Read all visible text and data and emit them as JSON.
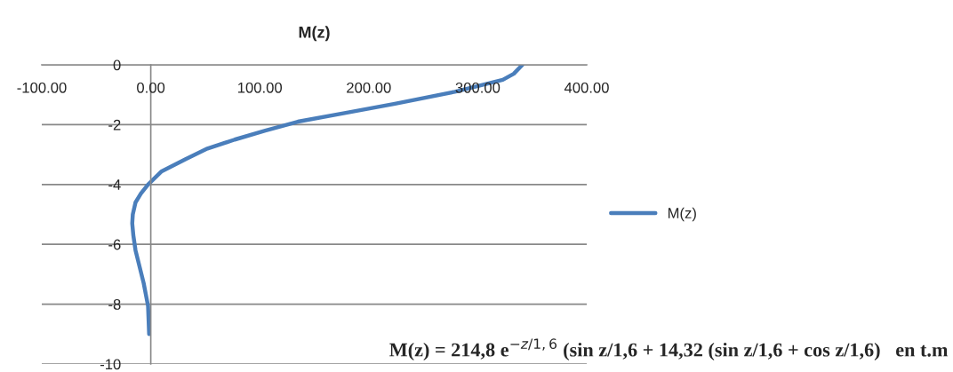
{
  "chart_data": {
    "type": "line",
    "title": "M(z)",
    "series": [
      {
        "name": "M(z)",
        "color": "#4a7ebb",
        "x": [
          341,
          333,
          323,
          279,
          224,
          180,
          135,
          105,
          77,
          52,
          32,
          10,
          -2.5,
          -9,
          -14,
          -16.5,
          -17,
          -16,
          -14,
          -6.5,
          -2.5,
          -1.5
        ],
        "values": [
          0,
          -0.3,
          -0.5,
          -0.9,
          -1.3,
          -1.6,
          -1.9,
          -2.2,
          -2.5,
          -2.8,
          -3.15,
          -3.56,
          -4.0,
          -4.3,
          -4.6,
          -5.0,
          -5.3,
          -5.7,
          -6.2,
          -7.3,
          -8.06,
          -9.0
        ]
      }
    ],
    "xlim": [
      -100,
      400
    ],
    "xticks": [
      {
        "value": -100,
        "label": "-100.00"
      },
      {
        "value": 0,
        "label": "0.00"
      },
      {
        "value": 100,
        "label": "100.00"
      },
      {
        "value": 200,
        "label": "200.00"
      },
      {
        "value": 300,
        "label": "300.00"
      },
      {
        "value": 400,
        "label": "400.00"
      }
    ],
    "ylim": [
      -10,
      0
    ],
    "yticks": [
      0,
      -2,
      -4,
      -6,
      -8,
      -10
    ],
    "grid": "y",
    "legend": "right",
    "marker": "none",
    "line_style": "solid",
    "annotations": [
      "M(z) = 214,8 e$^{−z/1,6}$ (sin z/1,6 + 14,32 (sin z/1,6 + cos z/1,6)   en t.m"
    ]
  }
}
